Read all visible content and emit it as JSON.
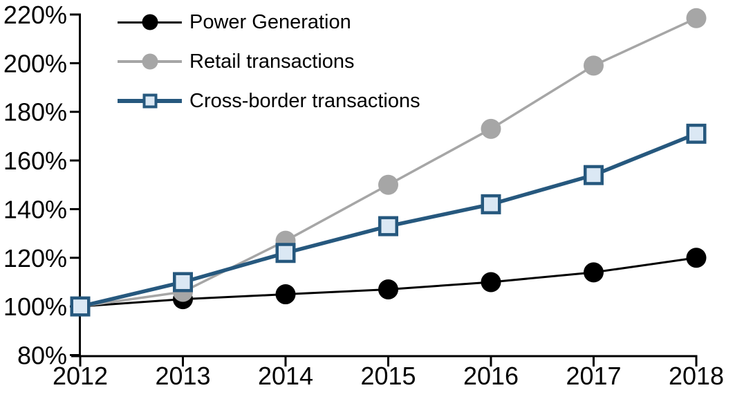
{
  "chart_data": {
    "type": "line",
    "title": "",
    "xlabel": "",
    "ylabel": "",
    "categories": [
      "2012",
      "2013",
      "2014",
      "2015",
      "2016",
      "2017",
      "2018"
    ],
    "series": [
      {
        "name": "Power Generation",
        "values": [
          100,
          103,
          105,
          107,
          110,
          114,
          120
        ],
        "color": "#000000",
        "marker": "circle",
        "marker_fill": "#000000",
        "line_width": 3
      },
      {
        "name": "Retail transactions",
        "values": [
          100,
          106,
          127,
          150,
          173,
          199,
          218.5
        ],
        "color": "#A6A6A6",
        "marker": "circle",
        "marker_fill": "#A6A6A6",
        "line_width": 3.5
      },
      {
        "name": "Cross-border transactions",
        "values": [
          100,
          110,
          122,
          133,
          142,
          154,
          171
        ],
        "color": "#26587E",
        "marker": "square",
        "marker_fill": "#DBE8F4",
        "line_width": 5.5
      }
    ],
    "ylim": [
      80,
      220
    ],
    "yticks": [
      80,
      100,
      120,
      140,
      160,
      180,
      200,
      220
    ],
    "ytick_labels": [
      "80%",
      "100%",
      "120%",
      "140%",
      "160%",
      "180%",
      "200%",
      "220%"
    ],
    "grid": false,
    "legend_position": "top-left-inside",
    "axis_color": "#000000",
    "background_color": "#FFFFFF"
  }
}
